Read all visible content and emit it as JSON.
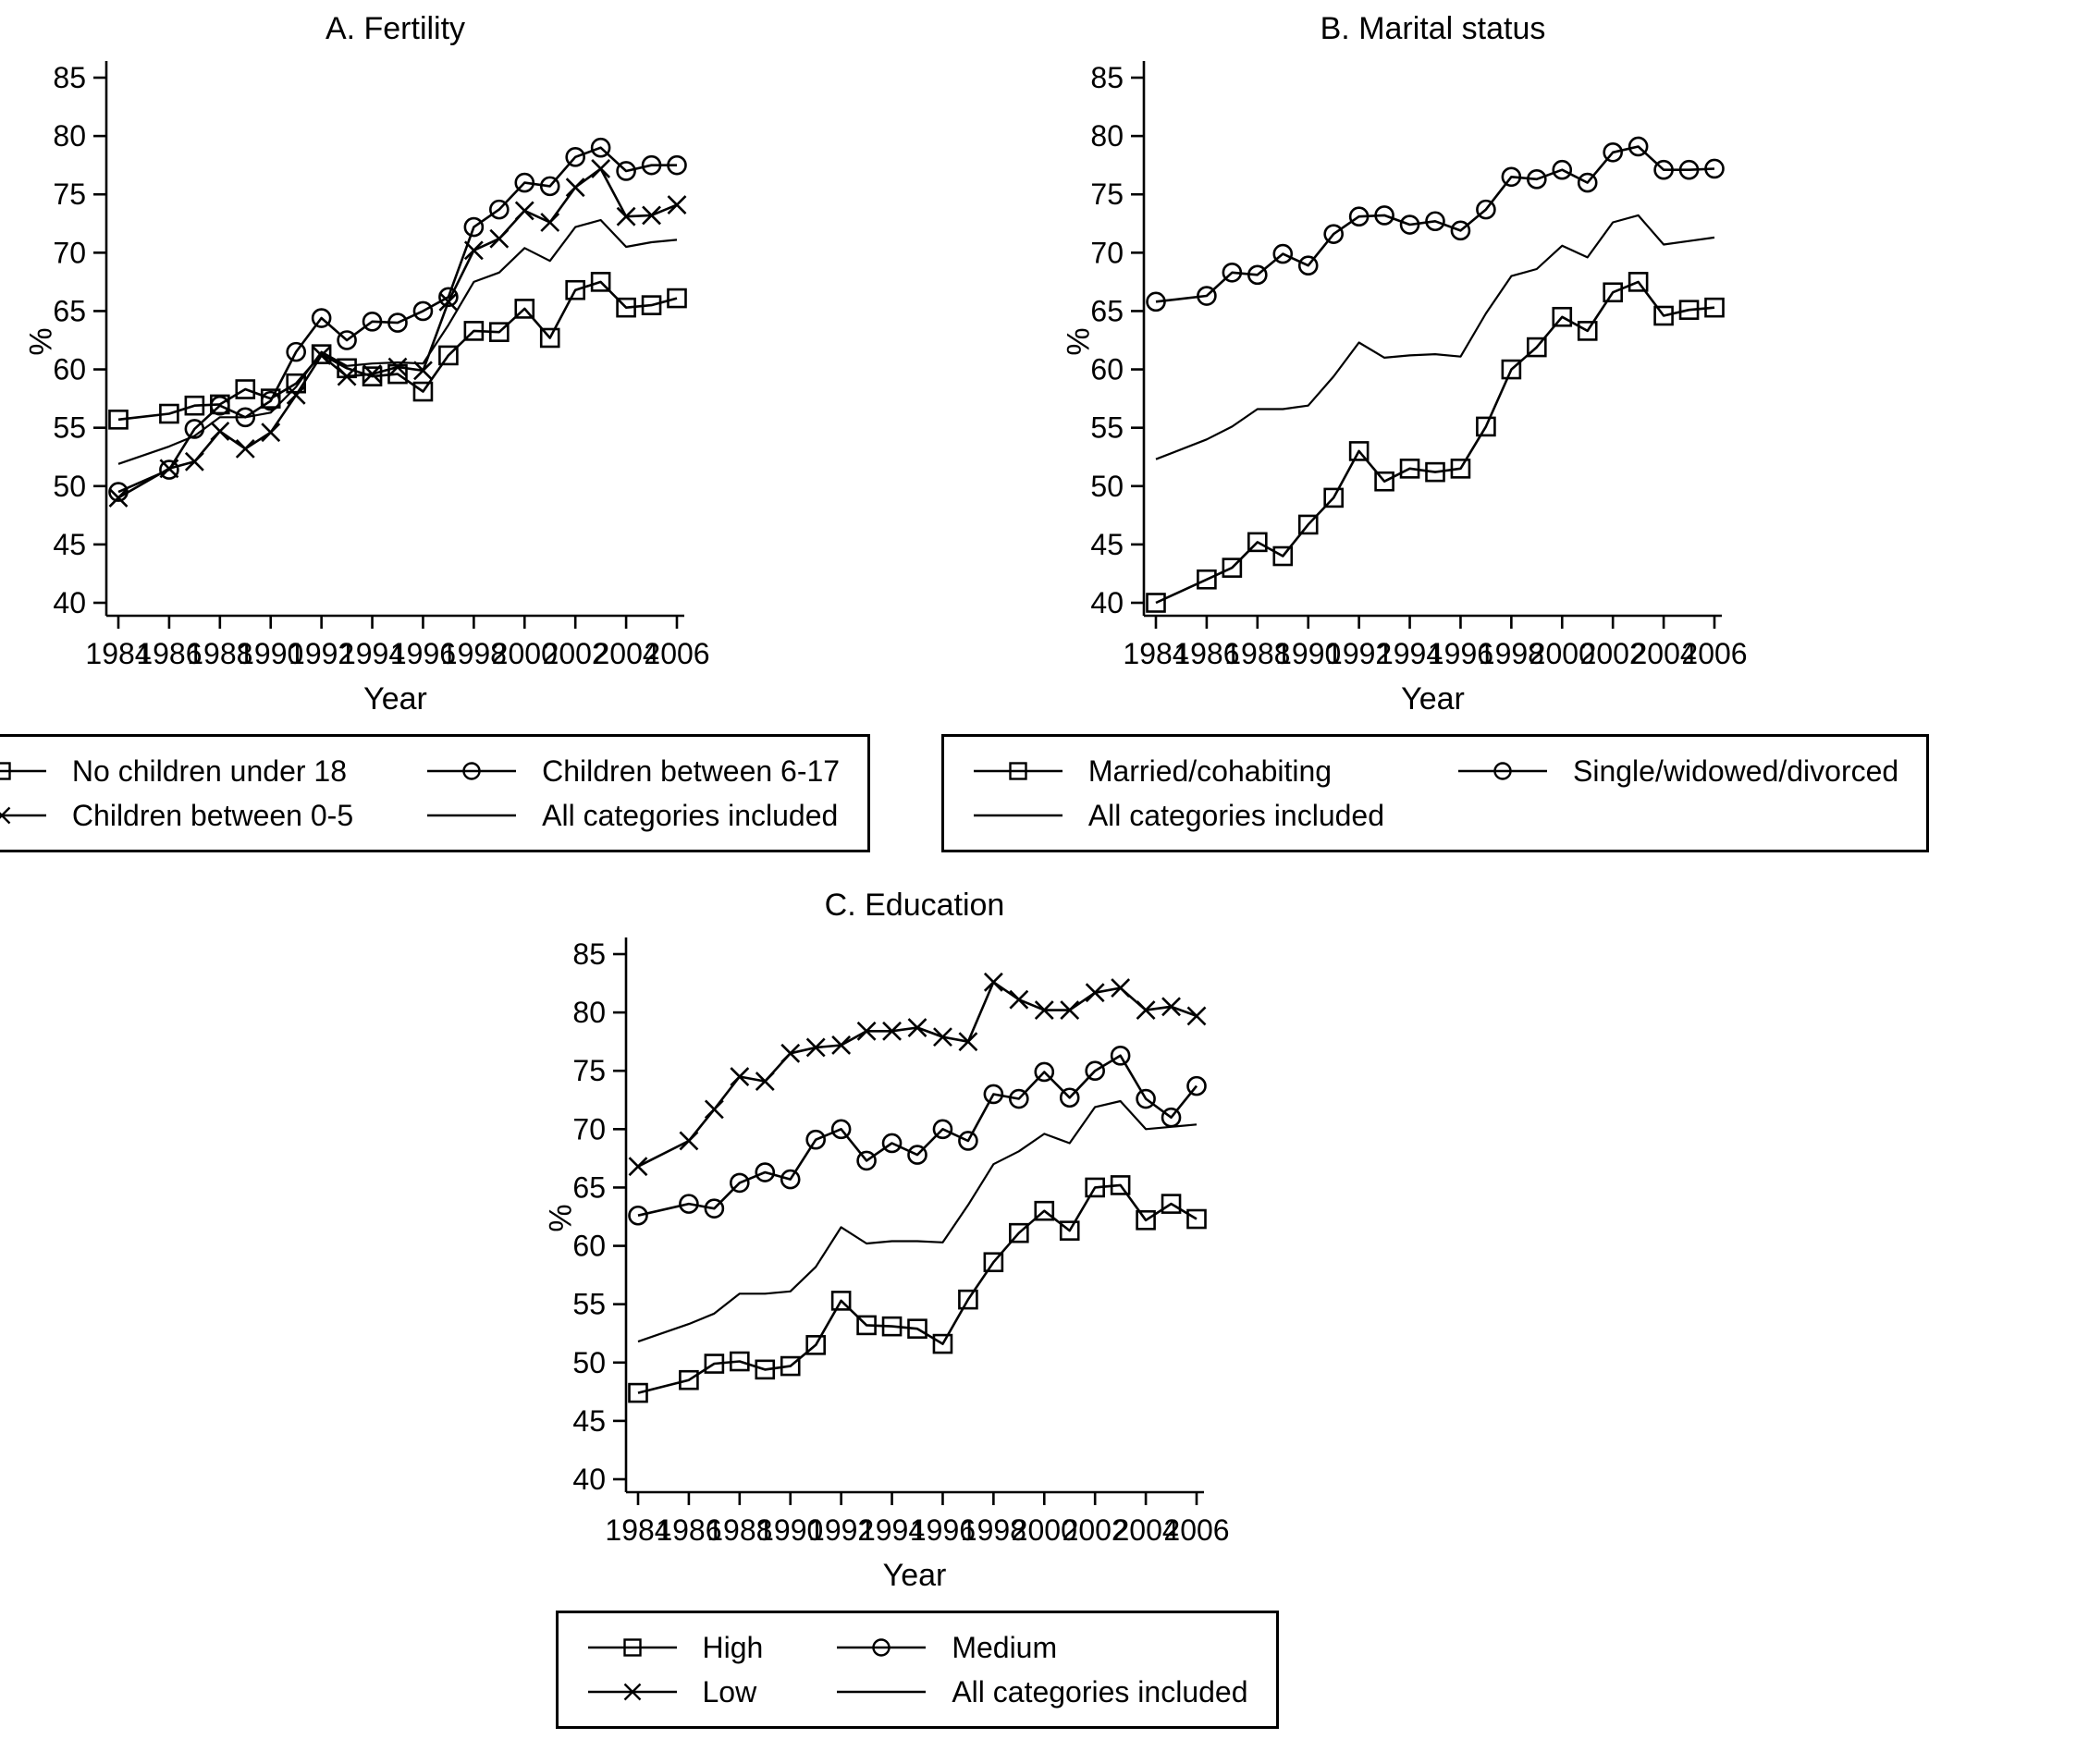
{
  "figure": {
    "background_color": "#ffffff",
    "ink_color": "#000000"
  },
  "chart_data": [
    {
      "id": "fertility",
      "type": "line",
      "title": "A. Fertility",
      "xlabel": "Year",
      "ylabel": "%",
      "grid": false,
      "legend_position": "bottom",
      "ylim": [
        38.9,
        86.4
      ],
      "yticks": [
        40,
        45,
        50,
        55,
        60,
        65,
        70,
        75,
        80,
        85
      ],
      "xticks": [
        1984,
        1986,
        1988,
        1990,
        1992,
        1994,
        1996,
        1998,
        2000,
        2002,
        2004,
        2006
      ],
      "x": [
        1984,
        1986,
        1987,
        1988,
        1989,
        1990,
        1991,
        1992,
        1993,
        1994,
        1995,
        1996,
        1997,
        1998,
        1999,
        2000,
        2001,
        2002,
        2003,
        2004,
        2005,
        2006
      ],
      "series": [
        {
          "name": "No children under 18",
          "marker": "square",
          "values": [
            55.7,
            56.2,
            56.9,
            57.0,
            58.3,
            57.5,
            58.8,
            61.3,
            60.1,
            59.4,
            59.6,
            58.1,
            61.2,
            63.3,
            63.2,
            65.2,
            62.7,
            66.8,
            67.5,
            65.3,
            65.5,
            66.1
          ]
        },
        {
          "name": "Children between 0-5",
          "marker": "x",
          "values": [
            49.0,
            51.5,
            52.1,
            54.7,
            53.2,
            54.6,
            57.8,
            61.2,
            59.4,
            59.6,
            60.2,
            59.9,
            65.8,
            70.2,
            71.2,
            73.6,
            72.6,
            75.6,
            77.2,
            73.1,
            73.2,
            74.1
          ]
        },
        {
          "name": "Children between 6-17",
          "marker": "circle",
          "values": [
            49.5,
            51.4,
            54.9,
            56.9,
            55.9,
            57.3,
            61.5,
            64.4,
            62.5,
            64.1,
            64.0,
            65.0,
            66.2,
            72.2,
            73.7,
            76.0,
            75.7,
            78.2,
            79.0,
            77.0,
            77.5,
            77.5
          ]
        },
        {
          "name": "All categories included",
          "marker": "none",
          "values": [
            51.9,
            53.4,
            54.3,
            55.9,
            55.9,
            56.3,
            58.5,
            61.5,
            60.3,
            60.5,
            60.6,
            60.5,
            63.8,
            67.5,
            68.3,
            70.4,
            69.3,
            72.2,
            72.8,
            70.5,
            70.9,
            71.1
          ]
        }
      ],
      "legend_rows": [
        [
          "No children under 18",
          "Children between 6-17"
        ],
        [
          "Children between 0-5",
          "All categories included"
        ]
      ]
    },
    {
      "id": "marital-status",
      "type": "line",
      "title": "B. Marital status",
      "xlabel": "Year",
      "ylabel": "%",
      "grid": false,
      "legend_position": "bottom",
      "ylim": [
        38.9,
        86.4
      ],
      "yticks": [
        40,
        45,
        50,
        55,
        60,
        65,
        70,
        75,
        80,
        85
      ],
      "xticks": [
        1984,
        1986,
        1988,
        1990,
        1992,
        1994,
        1996,
        1998,
        2000,
        2002,
        2004,
        2006
      ],
      "x": [
        1984,
        1986,
        1987,
        1988,
        1989,
        1990,
        1991,
        1992,
        1993,
        1994,
        1995,
        1996,
        1997,
        1998,
        1999,
        2000,
        2001,
        2002,
        2003,
        2004,
        2005,
        2006
      ],
      "series": [
        {
          "name": "Married/cohabiting",
          "marker": "square",
          "values": [
            40.0,
            42.0,
            43.0,
            45.2,
            44.0,
            46.7,
            49.0,
            53.0,
            50.4,
            51.5,
            51.2,
            51.5,
            55.1,
            60.0,
            61.9,
            64.5,
            63.3,
            66.6,
            67.5,
            64.6,
            65.1,
            65.3
          ]
        },
        {
          "name": "Single/widowed/divorced",
          "marker": "circle",
          "values": [
            65.8,
            66.3,
            68.3,
            68.1,
            69.9,
            68.9,
            71.6,
            73.1,
            73.2,
            72.4,
            72.7,
            71.9,
            73.7,
            76.5,
            76.3,
            77.1,
            76.0,
            78.6,
            79.1,
            77.1,
            77.1,
            77.2
          ]
        },
        {
          "name": "All categories included",
          "marker": "none",
          "values": [
            52.3,
            54.0,
            55.1,
            56.6,
            56.6,
            56.9,
            59.4,
            62.3,
            61.0,
            61.2,
            61.3,
            61.1,
            64.8,
            68.0,
            68.6,
            70.6,
            69.6,
            72.6,
            73.2,
            70.7,
            71.0,
            71.3
          ]
        }
      ],
      "legend_rows": [
        [
          "Married/cohabiting",
          "Single/widowed/divorced"
        ],
        [
          "All categories included"
        ]
      ]
    },
    {
      "id": "education",
      "type": "line",
      "title": "C. Education",
      "xlabel": "Year",
      "ylabel": "%",
      "grid": false,
      "legend_position": "bottom",
      "ylim": [
        38.9,
        86.4
      ],
      "yticks": [
        40,
        45,
        50,
        55,
        60,
        65,
        70,
        75,
        80,
        85
      ],
      "xticks": [
        1984,
        1986,
        1988,
        1990,
        1992,
        1994,
        1996,
        1998,
        2000,
        2002,
        2004,
        2006
      ],
      "x": [
        1984,
        1986,
        1987,
        1988,
        1989,
        1990,
        1991,
        1992,
        1993,
        1994,
        1995,
        1996,
        1997,
        1998,
        1999,
        2000,
        2001,
        2002,
        2003,
        2004,
        2005,
        2006
      ],
      "series": [
        {
          "name": "High",
          "marker": "square",
          "values": [
            47.4,
            48.5,
            49.9,
            50.1,
            49.4,
            49.7,
            51.5,
            55.3,
            53.2,
            53.1,
            52.9,
            51.6,
            55.4,
            58.6,
            61.1,
            63.0,
            61.3,
            65.0,
            65.2,
            62.2,
            63.6,
            62.3
          ]
        },
        {
          "name": "Low",
          "marker": "x",
          "values": [
            66.8,
            69.0,
            71.7,
            74.5,
            74.1,
            76.5,
            77.0,
            77.2,
            78.4,
            78.4,
            78.7,
            77.9,
            77.5,
            82.6,
            81.1,
            80.2,
            80.2,
            81.7,
            82.1,
            80.2,
            80.5,
            79.7
          ]
        },
        {
          "name": "Medium",
          "marker": "circle",
          "values": [
            62.6,
            63.6,
            63.2,
            65.4,
            66.3,
            65.7,
            69.1,
            70.0,
            67.3,
            68.8,
            67.8,
            70.0,
            69.0,
            73.0,
            72.6,
            74.9,
            72.7,
            75.0,
            76.3,
            72.6,
            71.0,
            73.7
          ]
        },
        {
          "name": "All categories included",
          "marker": "none",
          "values": [
            51.8,
            53.3,
            54.2,
            55.9,
            55.9,
            56.1,
            58.2,
            61.6,
            60.2,
            60.4,
            60.4,
            60.3,
            63.5,
            67.0,
            68.1,
            69.6,
            68.8,
            71.9,
            72.4,
            70.0,
            70.2,
            70.4
          ]
        }
      ],
      "legend_rows": [
        [
          "High",
          "Medium"
        ],
        [
          "Low",
          "All categories included"
        ]
      ]
    }
  ]
}
